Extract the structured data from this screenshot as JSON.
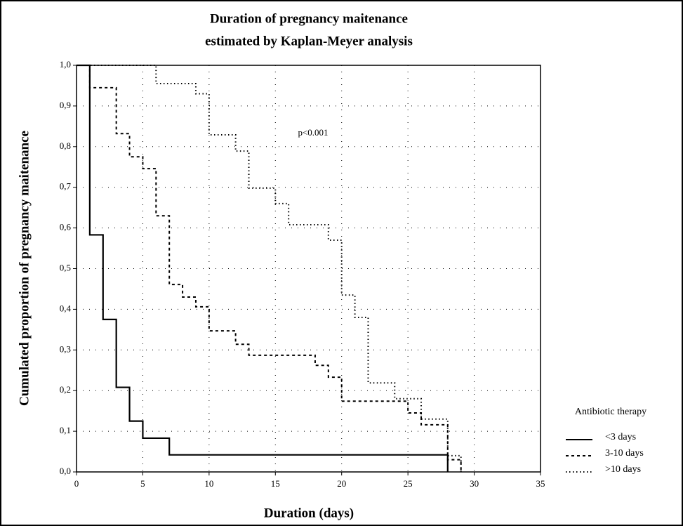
{
  "chart_data": {
    "type": "step",
    "title": [
      "Duration of pregnancy maitenance",
      "estimated by Kaplan-Meyer analysis"
    ],
    "x_label": "Duration (days)",
    "y_label": "Cumulated proportion of pregnancy maitenance",
    "annotation": "p<0.001",
    "legend_title": "Antibiotic therapy",
    "grid": true,
    "xlim": [
      0,
      35
    ],
    "xticks": [
      0,
      5,
      10,
      15,
      20,
      25,
      30,
      35
    ],
    "ylim": [
      0,
      1
    ],
    "yticks": [
      {
        "value": 0,
        "label": "0,0"
      },
      {
        "value": 0.1,
        "label": "0,1"
      },
      {
        "value": 0.2,
        "label": "0,2"
      },
      {
        "value": 0.3,
        "label": "0,3"
      },
      {
        "value": 0.4,
        "label": "0,4"
      },
      {
        "value": 0.5,
        "label": "0,5"
      },
      {
        "value": 0.6,
        "label": "0,6"
      },
      {
        "value": 0.7,
        "label": "0,7"
      },
      {
        "value": 0.8,
        "label": "0,8"
      },
      {
        "value": 0.9,
        "label": "0,9"
      },
      {
        "value": 1,
        "label": "1,0"
      }
    ],
    "series": [
      {
        "name": "<3 days",
        "color": "#000000",
        "dash": "solid",
        "x": [
          0,
          1,
          2,
          3,
          4,
          5,
          7,
          28
        ],
        "values": [
          1,
          0.583,
          0.375,
          0.208,
          0.125,
          0.083,
          0.042,
          0
        ]
      },
      {
        "name": "3-10 days",
        "color": "#000000",
        "dash": "dashed",
        "x": [
          0,
          1,
          3,
          4,
          5,
          6,
          7,
          8,
          9,
          10,
          12,
          13,
          18,
          19,
          20,
          25,
          26,
          28,
          29
        ],
        "values": [
          1,
          0.945,
          0.832,
          0.775,
          0.746,
          0.63,
          0.461,
          0.43,
          0.406,
          0.347,
          0.314,
          0.287,
          0.262,
          0.233,
          0.174,
          0.145,
          0.116,
          0.03,
          0
        ]
      },
      {
        "name": ">10 days",
        "color": "#000000",
        "dash": "dotted",
        "x": [
          0,
          6,
          9,
          10,
          12,
          13,
          15,
          16,
          19,
          20,
          21,
          22,
          24,
          26,
          28,
          29
        ],
        "values": [
          1,
          0.955,
          0.93,
          0.829,
          0.789,
          0.698,
          0.66,
          0.608,
          0.57,
          0.435,
          0.38,
          0.219,
          0.18,
          0.13,
          0.04,
          0
        ]
      }
    ]
  }
}
